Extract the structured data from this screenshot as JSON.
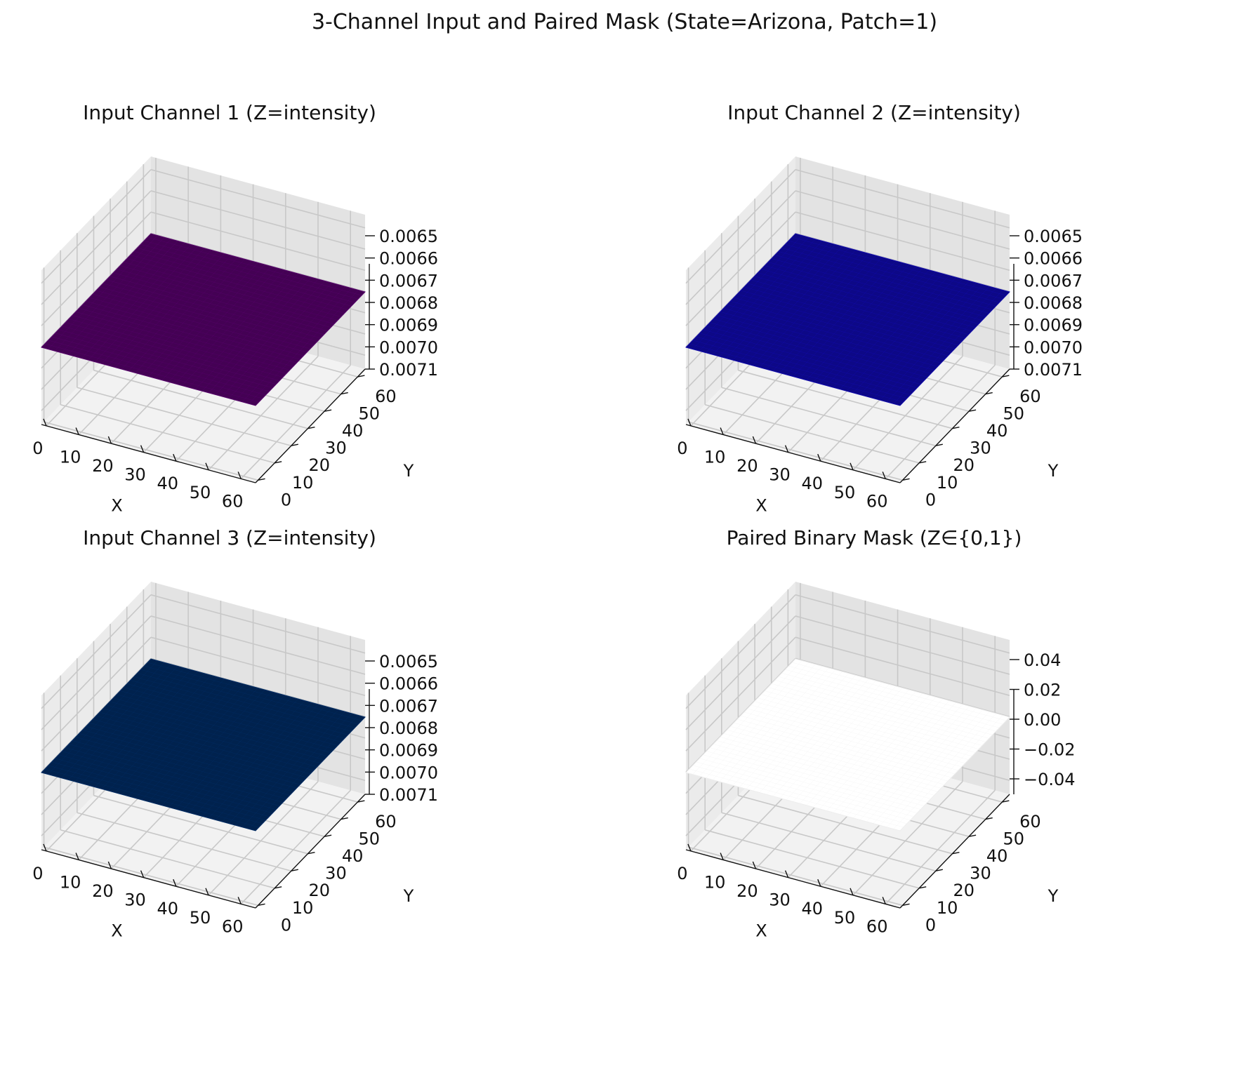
{
  "figure_title": "3-Channel Input and Paired Mask (State=Arizona, Patch=1)",
  "chart_data": [
    {
      "type": "surface3d",
      "title": "Input Channel 1 (Z=intensity)",
      "xlabel": "X",
      "ylabel": "Y",
      "zlabel": "",
      "xlim": [
        0,
        63
      ],
      "ylim": [
        0,
        63
      ],
      "x_ticks": [
        0,
        10,
        20,
        30,
        40,
        50,
        60
      ],
      "y_ticks": [
        0,
        10,
        20,
        30,
        40,
        50,
        60
      ],
      "z_ticks": [
        "0.0065",
        "0.0066",
        "0.0067",
        "0.0068",
        "0.0069",
        "0.0070",
        "0.0071"
      ],
      "z_value": 0.0068,
      "grid": true,
      "surface_color": "#440154"
    },
    {
      "type": "surface3d",
      "title": "Input Channel 2 (Z=intensity)",
      "xlabel": "X",
      "ylabel": "Y",
      "zlabel": "",
      "xlim": [
        0,
        63
      ],
      "ylim": [
        0,
        63
      ],
      "x_ticks": [
        0,
        10,
        20,
        30,
        40,
        50,
        60
      ],
      "y_ticks": [
        0,
        10,
        20,
        30,
        40,
        50,
        60
      ],
      "z_ticks": [
        "0.0065",
        "0.0066",
        "0.0067",
        "0.0068",
        "0.0069",
        "0.0070",
        "0.0071"
      ],
      "z_value": 0.0068,
      "grid": true,
      "surface_color": "#0d0887"
    },
    {
      "type": "surface3d",
      "title": "Input Channel 3 (Z=intensity)",
      "xlabel": "X",
      "ylabel": "Y",
      "zlabel": "",
      "xlim": [
        0,
        63
      ],
      "ylim": [
        0,
        63
      ],
      "x_ticks": [
        0,
        10,
        20,
        30,
        40,
        50,
        60
      ],
      "y_ticks": [
        0,
        10,
        20,
        30,
        40,
        50,
        60
      ],
      "z_ticks": [
        "0.0065",
        "0.0066",
        "0.0067",
        "0.0068",
        "0.0069",
        "0.0070",
        "0.0071"
      ],
      "z_value": 0.0068,
      "grid": true,
      "surface_color": "#00224e"
    },
    {
      "type": "surface3d",
      "title": "Paired Binary Mask (Z∈{0,1})",
      "xlabel": "X",
      "ylabel": "Y",
      "zlabel": "",
      "xlim": [
        0,
        63
      ],
      "ylim": [
        0,
        63
      ],
      "x_ticks": [
        0,
        10,
        20,
        30,
        40,
        50,
        60
      ],
      "y_ticks": [
        0,
        10,
        20,
        30,
        40,
        50,
        60
      ],
      "z_ticks": [
        "0.04",
        "0.02",
        "0.00",
        "−0.02",
        "−0.04"
      ],
      "z_value": 0,
      "grid": true,
      "surface_color": "#ffffff"
    }
  ]
}
